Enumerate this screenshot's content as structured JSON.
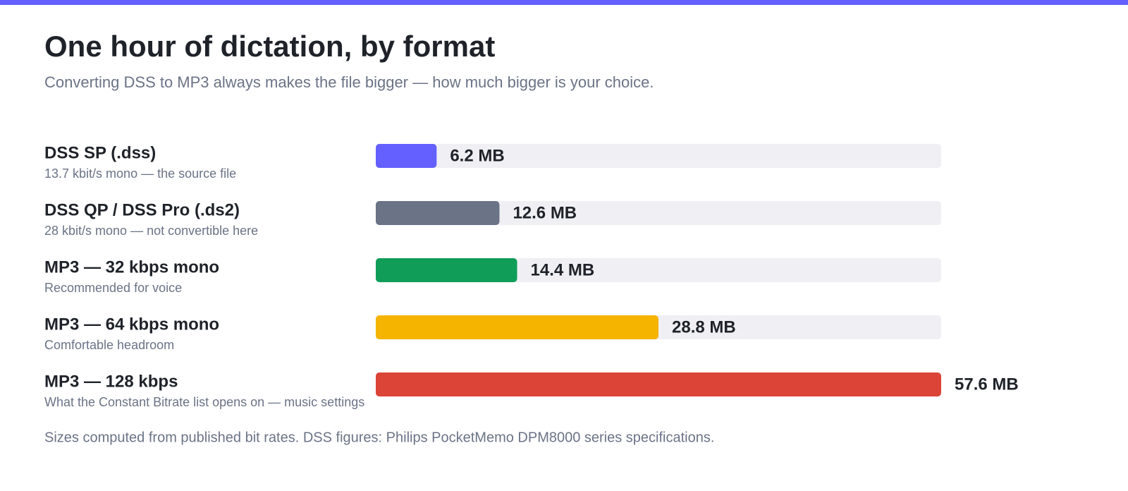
{
  "chart_data": {
    "type": "bar",
    "orientation": "horizontal",
    "title": "One hour of dictation, by format",
    "subtitle": "Converting DSS to MP3 always makes the file bigger — how much bigger is your choice.",
    "categories": [
      "DSS SP (.dss)",
      "DSS QP / DSS Pro (.ds2)",
      "MP3 — 32 kbps mono",
      "MP3 — 64 kbps mono",
      "MP3 — 128 kbps"
    ],
    "descriptions": [
      "13.7 kbit/s mono — the source file",
      "28 kbit/s mono — not convertible here",
      "Recommended for voice",
      "Comfortable headroom",
      "What the Constant Bitrate list opens on — music settings"
    ],
    "values": [
      6.2,
      12.6,
      14.4,
      28.8,
      57.6
    ],
    "value_labels": [
      "6.2 MB",
      "12.6 MB",
      "14.4 MB",
      "28.8 MB",
      "57.6 MB"
    ],
    "colors": [
      "#6360ff",
      "#6b7387",
      "#0f9d58",
      "#f4b400",
      "#db4437"
    ],
    "xlim": [
      0,
      57.6
    ],
    "note": "Sizes computed from published bit rates. DSS figures: Philips PocketMemo DPM8000 series specifications."
  }
}
